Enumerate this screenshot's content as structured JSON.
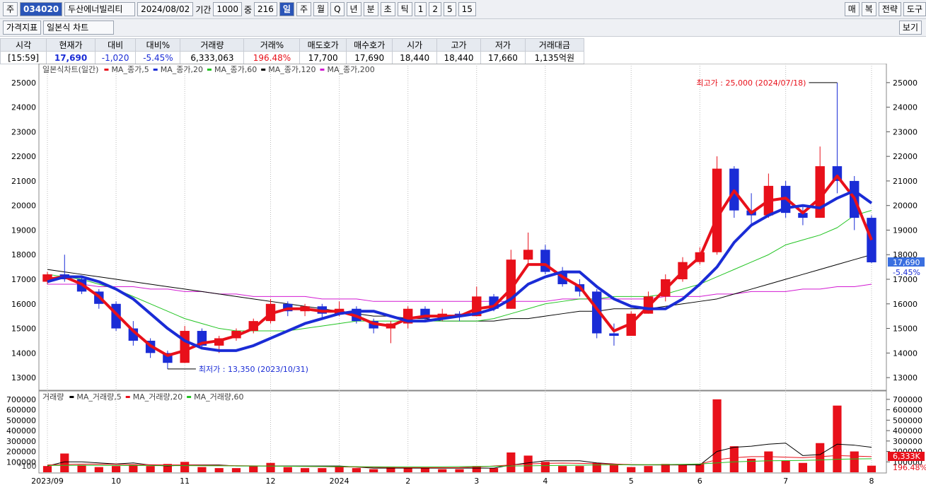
{
  "toolbar": {
    "market": "주",
    "code": "034020",
    "name": "두산에너빌리티",
    "date": "2024/08/02",
    "period_label": "기간",
    "period": "1000",
    "zoom_label": "중",
    "zoom": "216",
    "intervals": [
      "일",
      "주",
      "월",
      "Q",
      "년",
      "분",
      "초",
      "틱",
      "1",
      "2",
      "5",
      "15"
    ],
    "right_buttons": [
      "매",
      "복",
      "전략",
      "도구"
    ],
    "indicator": "가격지표",
    "chart_style": "일본식 차트",
    "view": "보기"
  },
  "quote": {
    "headers": [
      "시각",
      "현재가",
      "대비",
      "대비%",
      "거래량",
      "거래%",
      "매도호가",
      "매수호가",
      "시가",
      "고가",
      "저가",
      "거래대금"
    ],
    "values": [
      "[15:59]",
      "17,690",
      "-1,020",
      "-5.45%",
      "6,333,063",
      "196.48%",
      "17,700",
      "17,690",
      "18,440",
      "18,440",
      "17,660",
      "1,135억원"
    ]
  },
  "chart_data": [
    {
      "type": "candlestick",
      "title": "일본식차트(일간)",
      "categories": [
        "2023/09",
        null,
        null,
        null,
        "10",
        null,
        null,
        null,
        "11",
        null,
        null,
        null,
        null,
        "12",
        null,
        null,
        null,
        "2024",
        null,
        null,
        null,
        "2",
        null,
        null,
        null,
        "3",
        null,
        null,
        null,
        "4",
        null,
        null,
        null,
        null,
        "5",
        null,
        null,
        null,
        "6",
        null,
        null,
        null,
        null,
        "7",
        null,
        null,
        null,
        null,
        "8"
      ],
      "open": [
        16900,
        17200,
        17000,
        16500,
        16000,
        15000,
        14500,
        14000,
        13600,
        14900,
        14300,
        14600,
        14900,
        15300,
        16000,
        15700,
        15900,
        15600,
        15800,
        15300,
        15000,
        15200,
        15800,
        15400,
        15600,
        15500,
        16300,
        15800,
        17800,
        18200,
        17300,
        16800,
        16500,
        14800,
        14700,
        15600,
        16300,
        17000,
        17700,
        18100,
        21500,
        19800,
        19600,
        20800,
        19700,
        19500,
        21600,
        21000,
        19500
      ],
      "high": [
        17300,
        18000,
        17100,
        16600,
        16100,
        15300,
        14600,
        14100,
        15100,
        15000,
        14700,
        15000,
        15400,
        16200,
        16100,
        16000,
        16000,
        16100,
        15900,
        15400,
        15300,
        15900,
        15900,
        15800,
        15700,
        16700,
        16400,
        18200,
        18900,
        18400,
        17500,
        17000,
        16600,
        15200,
        15700,
        16500,
        17200,
        17900,
        18300,
        22000,
        21600,
        20500,
        21300,
        21000,
        20000,
        22400,
        25000,
        21200,
        19600
      ],
      "low": [
        16800,
        16900,
        16400,
        15800,
        14900,
        14300,
        13800,
        13350,
        13600,
        14200,
        14000,
        14500,
        14800,
        15200,
        15500,
        15500,
        15400,
        15500,
        15200,
        14800,
        14400,
        15000,
        15300,
        15300,
        15300,
        15500,
        15700,
        15800,
        17500,
        17200,
        16700,
        16300,
        14600,
        14300,
        14700,
        15600,
        16100,
        16900,
        17600,
        18000,
        19500,
        19200,
        19500,
        19500,
        19200,
        19500,
        20500,
        19000,
        17660
      ],
      "close": [
        17200,
        17000,
        16500,
        16000,
        15000,
        14500,
        14000,
        13600,
        14900,
        14300,
        14600,
        14900,
        15300,
        16000,
        15700,
        15900,
        15600,
        15800,
        15300,
        15000,
        15200,
        15800,
        15400,
        15600,
        15500,
        16300,
        15800,
        17800,
        18200,
        17300,
        16800,
        16500,
        14800,
        14700,
        15600,
        16300,
        17000,
        17700,
        18100,
        21500,
        19800,
        19600,
        20800,
        19700,
        19500,
        21600,
        21000,
        19500,
        17690
      ],
      "up_color": "#e8101a",
      "down_color": "#1a2cd6",
      "series": [
        {
          "name": "MA_종가,5",
          "color": "#e8101a",
          "width": 4,
          "values": [
            17000,
            17100,
            16800,
            16300,
            15600,
            14900,
            14300,
            13900,
            14100,
            14400,
            14500,
            14700,
            15000,
            15600,
            15800,
            15800,
            15700,
            15700,
            15500,
            15200,
            15100,
            15400,
            15500,
            15500,
            15500,
            15800,
            15900,
            16600,
            17600,
            17600,
            17100,
            16700,
            15800,
            14900,
            15200,
            15900,
            16600,
            17300,
            17900,
            19500,
            20600,
            19700,
            20200,
            20300,
            19700,
            20300,
            21200,
            20300,
            18600
          ]
        },
        {
          "name": "MA_종가,20",
          "color": "#1a2cd6",
          "width": 4,
          "values": [
            16900,
            17100,
            17100,
            16900,
            16600,
            16200,
            15600,
            15000,
            14500,
            14200,
            14100,
            14100,
            14300,
            14600,
            14900,
            15200,
            15400,
            15600,
            15700,
            15700,
            15500,
            15300,
            15300,
            15400,
            15500,
            15600,
            15800,
            16200,
            16800,
            17100,
            17300,
            17300,
            16700,
            16200,
            15900,
            15800,
            15800,
            16200,
            16800,
            17500,
            18500,
            19200,
            19600,
            19900,
            20000,
            19900,
            20300,
            20600,
            20100
          ]
        },
        {
          "name": "MA_종가,60",
          "color": "#22c422",
          "width": 1,
          "values": [
            17200,
            17100,
            17000,
            16800,
            16600,
            16300,
            16000,
            15700,
            15400,
            15200,
            15000,
            14900,
            14900,
            14900,
            14900,
            15000,
            15100,
            15200,
            15300,
            15300,
            15300,
            15300,
            15300,
            15300,
            15300,
            15300,
            15400,
            15600,
            15800,
            16000,
            16100,
            16200,
            16200,
            16300,
            16300,
            16300,
            16400,
            16600,
            16800,
            17100,
            17400,
            17700,
            18000,
            18400,
            18600,
            18800,
            19100,
            19600,
            19800
          ]
        },
        {
          "name": "MA_종가,120",
          "color": "#000000",
          "width": 1,
          "values": [
            17400,
            17300,
            17200,
            17100,
            17000,
            16900,
            16800,
            16700,
            16600,
            16500,
            16400,
            16300,
            16200,
            16100,
            16000,
            15900,
            15800,
            15700,
            15600,
            15500,
            15500,
            15400,
            15400,
            15300,
            15300,
            15300,
            15300,
            15400,
            15400,
            15500,
            15600,
            15700,
            15700,
            15800,
            15800,
            15800,
            15900,
            16000,
            16100,
            16200,
            16400,
            16600,
            16800,
            17000,
            17200,
            17400,
            17600,
            17800,
            18000
          ]
        },
        {
          "name": "MA_종가,200",
          "color": "#d21ad2",
          "width": 1,
          "values": [
            16800,
            16800,
            16800,
            16700,
            16700,
            16700,
            16600,
            16600,
            16500,
            16500,
            16400,
            16400,
            16300,
            16300,
            16300,
            16300,
            16200,
            16200,
            16200,
            16100,
            16100,
            16100,
            16100,
            16100,
            16100,
            16100,
            16100,
            16100,
            16100,
            16100,
            16200,
            16200,
            16200,
            16200,
            16200,
            16200,
            16300,
            16300,
            16300,
            16400,
            16400,
            16500,
            16500,
            16500,
            16600,
            16600,
            16700,
            16700,
            16800
          ]
        }
      ],
      "ylim": [
        12600,
        25600
      ],
      "yticks": [
        13000,
        14000,
        15000,
        16000,
        17000,
        18000,
        19000,
        20000,
        21000,
        22000,
        23000,
        24000,
        25000
      ],
      "annotations": {
        "high_text": "최고가 : 25,000 (2024/07/18)",
        "low_text": "최저가 : 13,350 (2023/10/31)"
      },
      "last_price_label": "17,690",
      "last_change_label": "-5.45%"
    },
    {
      "type": "bar",
      "title": "거래량",
      "color": "#e8101a",
      "unit_label": "*100",
      "values": [
        60000,
        180000,
        70000,
        50000,
        60000,
        70000,
        60000,
        80000,
        100000,
        50000,
        40000,
        40000,
        60000,
        90000,
        50000,
        40000,
        40000,
        60000,
        40000,
        30000,
        50000,
        40000,
        40000,
        30000,
        30000,
        60000,
        40000,
        190000,
        160000,
        100000,
        60000,
        60000,
        90000,
        80000,
        50000,
        60000,
        80000,
        70000,
        80000,
        700000,
        250000,
        130000,
        200000,
        110000,
        90000,
        280000,
        640000,
        200000,
        63330
      ],
      "series": [
        {
          "name": "MA_거래량,5",
          "color": "#000000",
          "values": [
            60000,
            100000,
            100000,
            90000,
            80000,
            90000,
            70000,
            60000,
            70000,
            70000,
            70000,
            60000,
            60000,
            60000,
            60000,
            60000,
            60000,
            60000,
            50000,
            40000,
            40000,
            40000,
            40000,
            40000,
            40000,
            40000,
            40000,
            70000,
            90000,
            110000,
            110000,
            110000,
            90000,
            80000,
            70000,
            70000,
            70000,
            70000,
            70000,
            200000,
            240000,
            250000,
            270000,
            280000,
            160000,
            170000,
            270000,
            260000,
            240000
          ]
        },
        {
          "name": "MA_거래량,20",
          "color": "#e8101a",
          "values": [
            70000,
            75000,
            78000,
            78000,
            76000,
            74000,
            72000,
            70000,
            70000,
            68000,
            66000,
            64000,
            62000,
            60000,
            58000,
            56000,
            54000,
            52000,
            50000,
            48000,
            46000,
            45000,
            44000,
            44000,
            45000,
            50000,
            60000,
            70000,
            80000,
            86000,
            88000,
            86000,
            82000,
            78000,
            74000,
            72000,
            72000,
            74000,
            80000,
            120000,
            140000,
            150000,
            150000,
            145000,
            140000,
            150000,
            160000,
            155000,
            150000
          ]
        },
        {
          "name": "MA_거래량,60",
          "color": "#22c422",
          "values": [
            65000,
            66000,
            66000,
            66000,
            65000,
            65000,
            64000,
            64000,
            64000,
            63000,
            62000,
            61000,
            60000,
            59000,
            58000,
            57000,
            56000,
            55000,
            54000,
            53000,
            52000,
            52000,
            52000,
            53000,
            54000,
            56000,
            58000,
            60000,
            62000,
            64000,
            66000,
            68000,
            70000,
            71000,
            72000,
            73000,
            74000,
            76000,
            80000,
            90000,
            100000,
            105000,
            110000,
            112000,
            114000,
            118000,
            125000,
            128000,
            130000
          ]
        }
      ],
      "ylim": [
        0,
        760000
      ],
      "yticks": [
        100000,
        200000,
        300000,
        400000,
        500000,
        600000,
        700000
      ],
      "last_volume_label": "6,333K",
      "last_ratio_label": "196.48%"
    }
  ]
}
